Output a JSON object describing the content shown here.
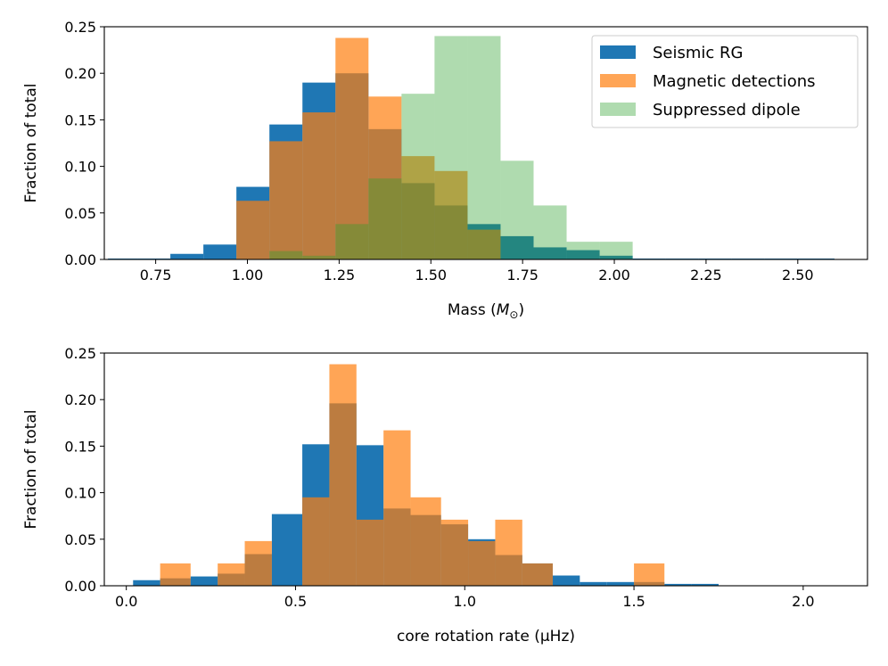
{
  "colors": {
    "seismic": "#1f77b4",
    "magnetic": "#ff7f0e",
    "suppressed": "#2ca02c"
  },
  "chart_data": [
    {
      "type": "histogram",
      "xlabel": "Mass (M⊙)",
      "xlabel_text": "Mass (",
      "xlabel_symbol": "M",
      "xlabel_subscript": "⊙",
      "xlabel_close": ")",
      "ylabel": "Fraction of total",
      "xlim": [
        0.61,
        2.69
      ],
      "ylim": [
        0,
        0.25
      ],
      "xticks": [
        "0.75",
        "1.00",
        "1.25",
        "1.50",
        "1.75",
        "2.00",
        "2.25",
        "2.50"
      ],
      "xtick_values": [
        0.75,
        1.0,
        1.25,
        1.5,
        1.75,
        2.0,
        2.25,
        2.5
      ],
      "yticks": [
        "0.00",
        "0.05",
        "0.10",
        "0.15",
        "0.20",
        "0.25"
      ],
      "ytick_values": [
        0,
        0.05,
        0.1,
        0.15,
        0.2,
        0.25
      ],
      "legend": {
        "position": "upper right",
        "entries": [
          "Seismic RG",
          "Magnetic detections",
          "Suppressed dipole"
        ]
      },
      "series": [
        {
          "name": "Seismic RG",
          "color_key": "seismic",
          "alpha": 1.0,
          "edges": [
            0.62,
            0.7,
            0.79,
            0.88,
            0.97,
            1.06,
            1.15,
            1.24,
            1.33,
            1.42,
            1.51,
            1.6,
            1.69,
            1.78,
            1.87,
            1.96,
            2.05,
            2.14,
            2.23,
            2.32,
            2.41,
            2.5,
            2.6
          ],
          "values": [
            0.001,
            0.001,
            0.006,
            0.016,
            0.078,
            0.145,
            0.19,
            0.2,
            0.14,
            0.082,
            0.058,
            0.038,
            0.025,
            0.013,
            0.01,
            0.004,
            0.001,
            0.001,
            0.001,
            0.001,
            0.001,
            0.001
          ]
        },
        {
          "name": "Magnetic detections",
          "color_key": "magnetic",
          "alpha": 0.7,
          "edges": [
            0.97,
            1.06,
            1.15,
            1.24,
            1.33,
            1.42,
            1.51,
            1.6,
            1.69
          ],
          "values": [
            0.063,
            0.127,
            0.158,
            0.238,
            0.175,
            0.111,
            0.095,
            0.032
          ]
        },
        {
          "name": "Suppressed dipole",
          "color_key": "suppressed",
          "alpha": 0.38,
          "edges": [
            1.06,
            1.15,
            1.24,
            1.33,
            1.42,
            1.51,
            1.6,
            1.69,
            1.78,
            1.87,
            1.96,
            2.05
          ],
          "values": [
            0.009,
            0.004,
            0.038,
            0.087,
            0.178,
            0.24,
            0.24,
            0.106,
            0.058,
            0.019,
            0.019
          ]
        }
      ]
    },
    {
      "type": "histogram",
      "xlabel": "core rotation rate (μHz)",
      "ylabel": "Fraction of total",
      "xlim": [
        -0.065,
        2.19
      ],
      "ylim": [
        0,
        0.25
      ],
      "xticks": [
        "0.0",
        "0.5",
        "1.0",
        "1.5",
        "2.0"
      ],
      "xtick_values": [
        0,
        0.5,
        1.0,
        1.5,
        2.0
      ],
      "yticks": [
        "0.00",
        "0.05",
        "0.10",
        "0.15",
        "0.20",
        "0.25"
      ],
      "ytick_values": [
        0,
        0.05,
        0.1,
        0.15,
        0.2,
        0.25
      ],
      "series": [
        {
          "name": "Seismic RG",
          "color_key": "seismic",
          "alpha": 1.0,
          "edges": [
            0.02,
            0.1,
            0.19,
            0.27,
            0.35,
            0.43,
            0.52,
            0.6,
            0.68,
            0.76,
            0.84,
            0.93,
            1.01,
            1.09,
            1.17,
            1.26,
            1.34,
            1.42,
            1.5,
            1.59,
            1.67,
            1.75
          ],
          "values": [
            0.006,
            0.008,
            0.01,
            0.013,
            0.034,
            0.077,
            0.152,
            0.196,
            0.151,
            0.083,
            0.076,
            0.066,
            0.05,
            0.033,
            0.024,
            0.011,
            0.004,
            0.004,
            0.004,
            0.002,
            0.002
          ]
        },
        {
          "name": "Magnetic detections",
          "color_key": "magnetic",
          "alpha": 0.7,
          "edges": [
            0.02,
            0.1,
            0.19,
            0.27,
            0.35,
            0.43,
            0.52,
            0.6,
            0.68,
            0.76,
            0.84,
            0.93,
            1.01,
            1.09,
            1.17,
            1.26,
            1.34,
            1.42,
            1.5,
            1.59
          ],
          "values": [
            0,
            0.024,
            0,
            0.024,
            0.048,
            0,
            0.095,
            0.238,
            0.071,
            0.167,
            0.095,
            0.071,
            0.048,
            0.071,
            0.024,
            0,
            0,
            0,
            0.024
          ]
        }
      ]
    }
  ]
}
